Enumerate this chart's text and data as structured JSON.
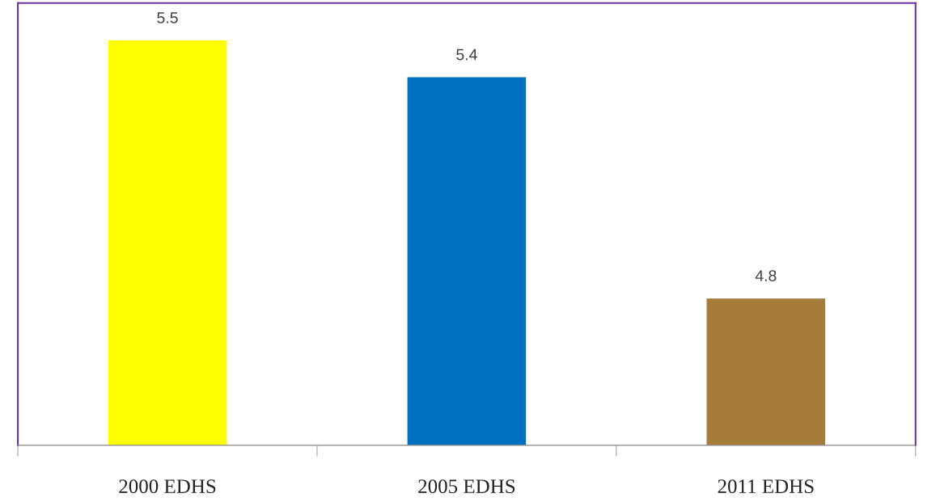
{
  "chart_data": {
    "type": "bar",
    "categories": [
      "2000 EDHS",
      "2005 EDHS",
      "2011 EDHS"
    ],
    "values": [
      5.5,
      5.4,
      4.8
    ],
    "colors": [
      "#ffff00",
      "#0070c0",
      "#a67c3a"
    ],
    "ylim": [
      4.4,
      5.6
    ],
    "tick_labels": "x",
    "data_labels": true,
    "grid": false,
    "legend": false
  }
}
